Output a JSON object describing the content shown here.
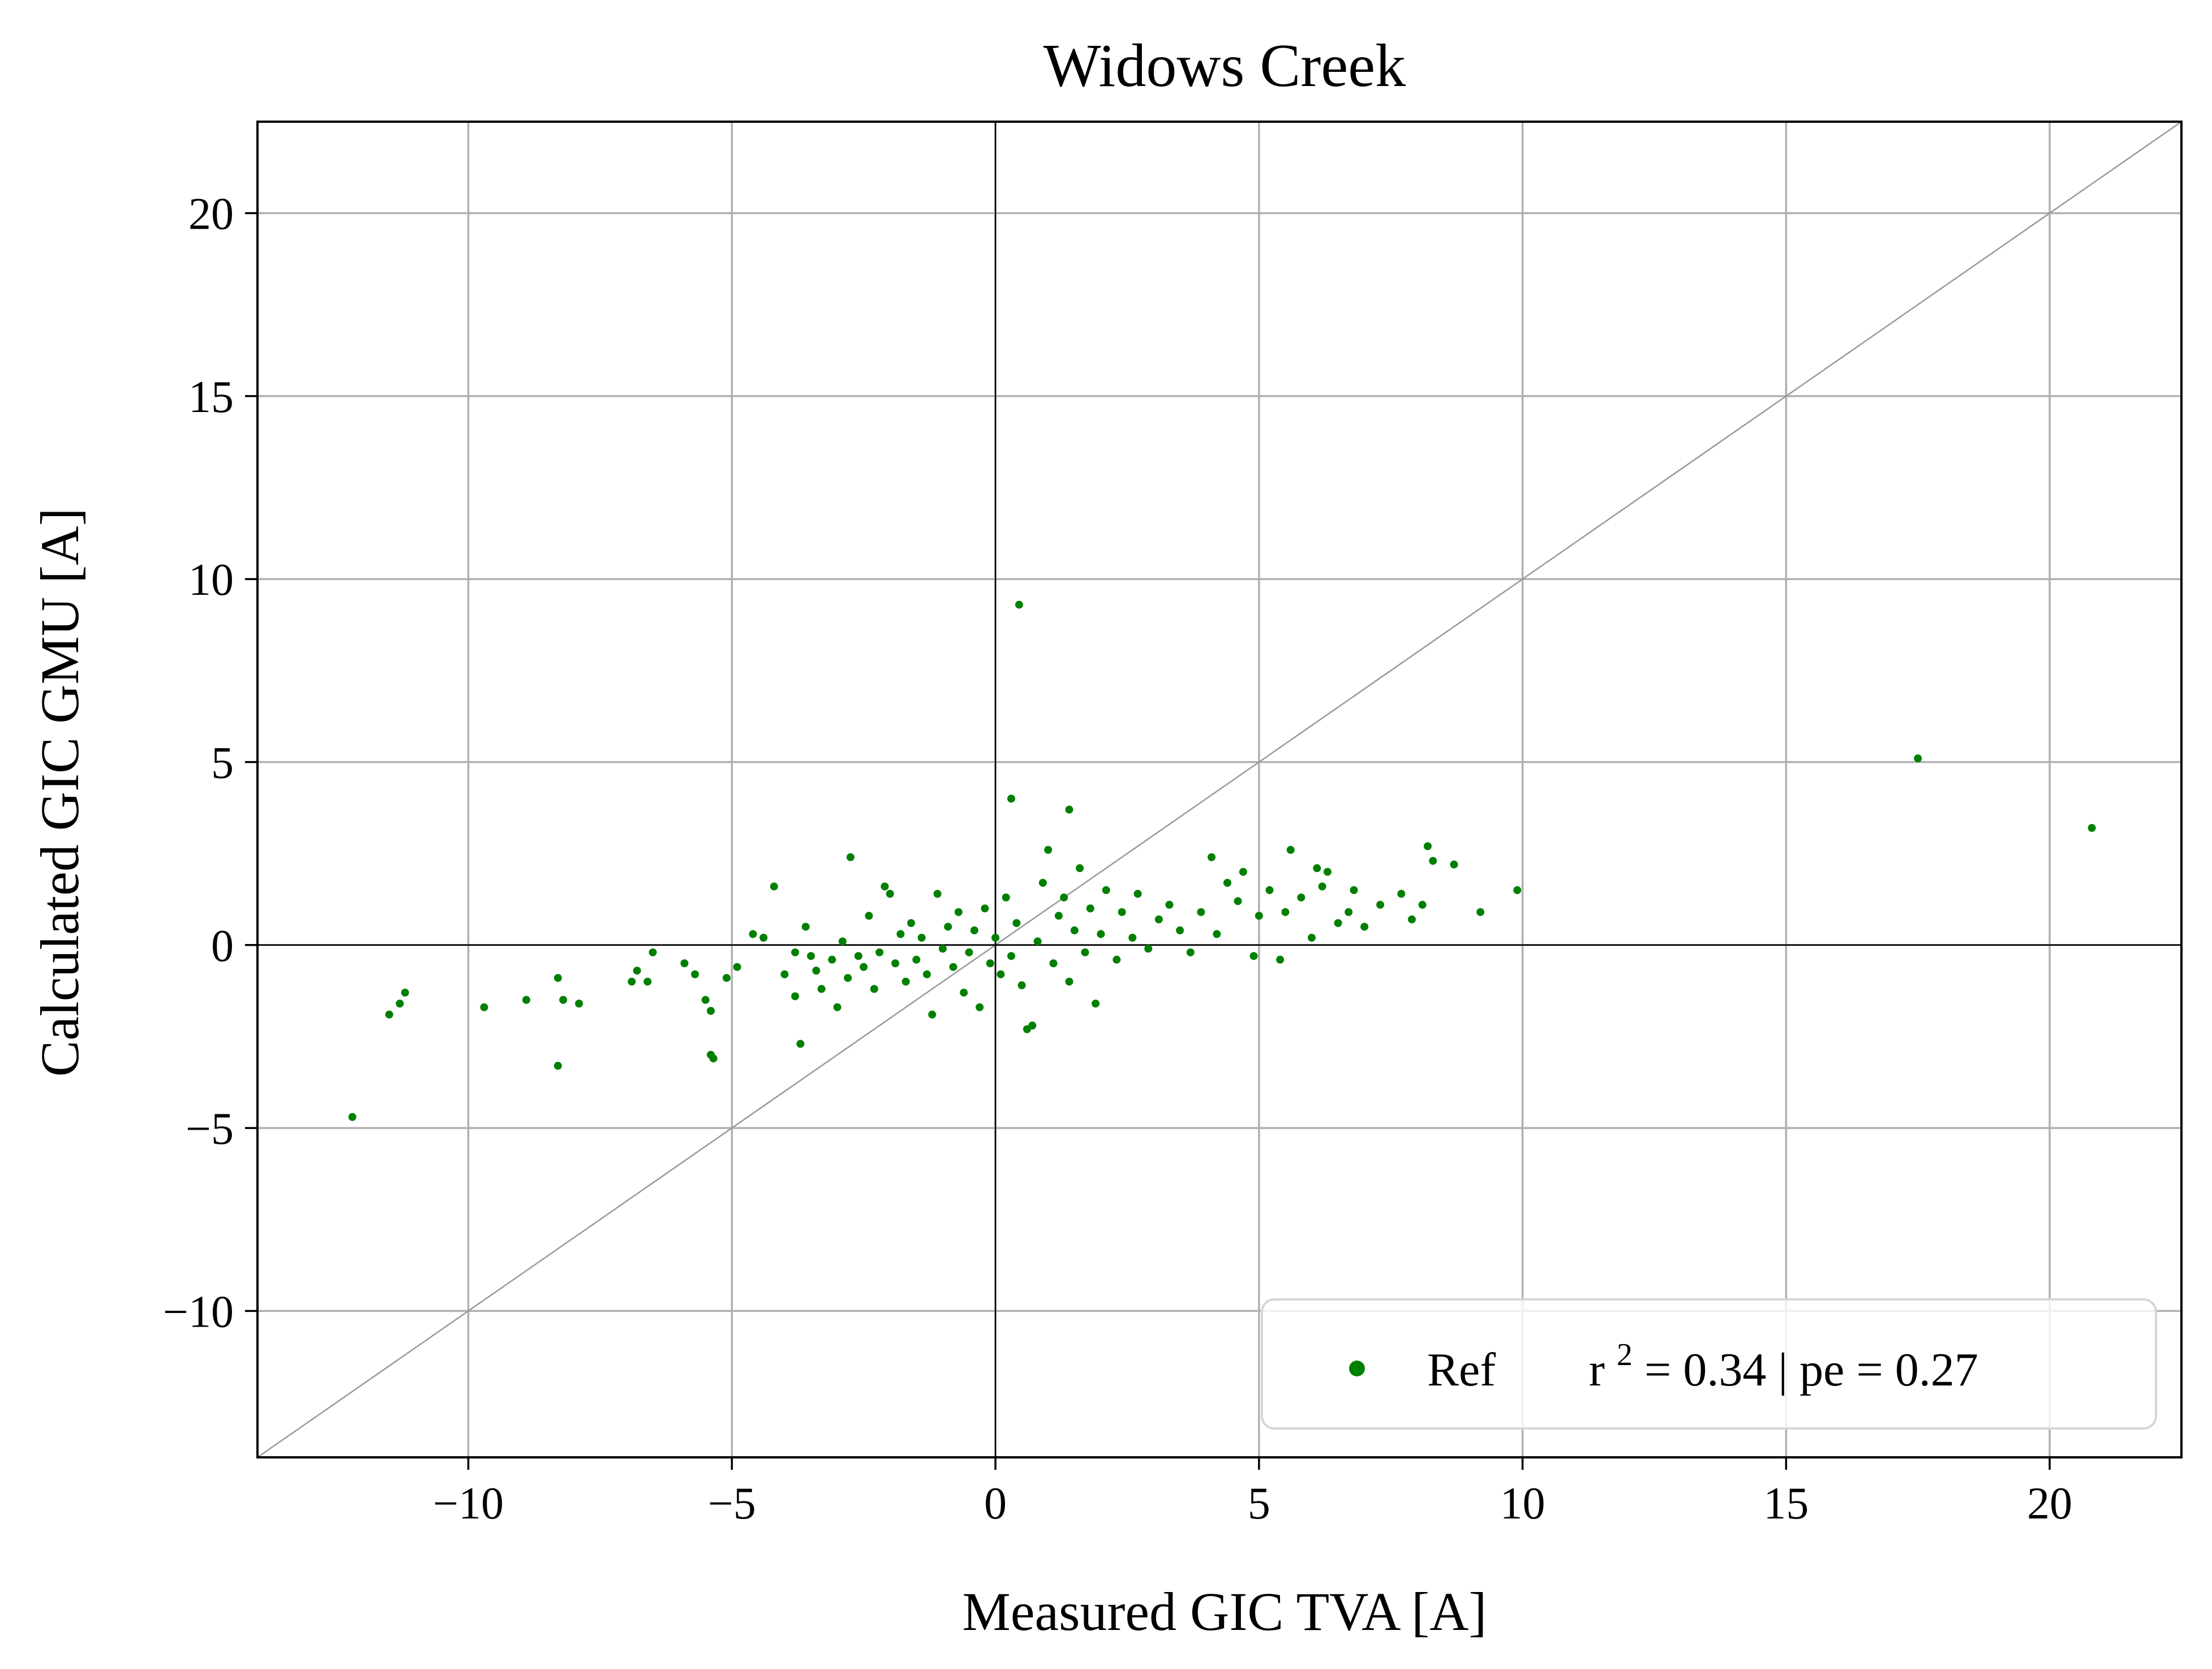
{
  "chart_data": {
    "type": "scatter",
    "title": "Widows Creek",
    "xlabel": "Measured GIC TVA [A]",
    "ylabel": "Calculated GIC GMU [A]",
    "xlim": [
      -14,
      22.5
    ],
    "ylim": [
      -14,
      22.5
    ],
    "xticks": [
      -10,
      -5,
      0,
      5,
      10,
      15,
      20
    ],
    "yticks": [
      -10,
      -5,
      0,
      5,
      10,
      15,
      20
    ],
    "xtick_labels": [
      "−10",
      "−5",
      "0",
      "5",
      "10",
      "15",
      "20"
    ],
    "ytick_labels": [
      "−10",
      "−5",
      "0",
      "5",
      "10",
      "15",
      "20"
    ],
    "grid": true,
    "reference_line": "y = x",
    "zero_lines": true,
    "legend_position": "lower-right",
    "series": [
      {
        "name": "Ref",
        "color": "#008000",
        "legend_label": "Ref",
        "legend_stats": {
          "r2_prefix": "r",
          "r2_exponent": "2",
          "r2_text": " = 0.34 | pe = 0.27"
        },
        "points": [
          [
            -12.2,
            -4.7
          ],
          [
            -11.5,
            -1.9
          ],
          [
            -11.2,
            -1.3
          ],
          [
            -11.3,
            -1.6
          ],
          [
            -9.7,
            -1.7
          ],
          [
            -8.9,
            -1.5
          ],
          [
            -8.3,
            -3.3
          ],
          [
            -8.3,
            -0.9
          ],
          [
            -8.2,
            -1.5
          ],
          [
            -7.9,
            -1.6
          ],
          [
            -6.9,
            -1.0
          ],
          [
            -6.8,
            -0.7
          ],
          [
            -6.6,
            -1.0
          ],
          [
            -6.5,
            -0.2
          ],
          [
            -5.9,
            -0.5
          ],
          [
            -5.7,
            -0.8
          ],
          [
            -5.5,
            -1.5
          ],
          [
            -5.4,
            -3.0
          ],
          [
            -5.35,
            -3.1
          ],
          [
            -5.4,
            -1.8
          ],
          [
            -5.1,
            -0.9
          ],
          [
            -4.9,
            -0.6
          ],
          [
            -4.6,
            0.3
          ],
          [
            -4.4,
            0.2
          ],
          [
            -4.2,
            1.6
          ],
          [
            -4.0,
            -0.8
          ],
          [
            -3.8,
            -0.2
          ],
          [
            -3.8,
            -1.4
          ],
          [
            -3.7,
            -2.7
          ],
          [
            -3.6,
            0.5
          ],
          [
            -3.5,
            -0.3
          ],
          [
            -3.4,
            -0.7
          ],
          [
            -3.3,
            -1.2
          ],
          [
            -3.1,
            -0.4
          ],
          [
            -3.0,
            -1.7
          ],
          [
            -2.9,
            0.1
          ],
          [
            -2.8,
            -0.9
          ],
          [
            -2.75,
            2.4
          ],
          [
            -2.6,
            -0.3
          ],
          [
            -2.5,
            -0.6
          ],
          [
            -2.4,
            0.8
          ],
          [
            -2.3,
            -1.2
          ],
          [
            -2.2,
            -0.2
          ],
          [
            -2.1,
            1.6
          ],
          [
            -2.0,
            1.4
          ],
          [
            -1.9,
            -0.5
          ],
          [
            -1.8,
            0.3
          ],
          [
            -1.7,
            -1.0
          ],
          [
            -1.6,
            0.6
          ],
          [
            -1.5,
            -0.4
          ],
          [
            -1.4,
            0.2
          ],
          [
            -1.3,
            -0.8
          ],
          [
            -1.2,
            -1.9
          ],
          [
            -1.1,
            1.4
          ],
          [
            -1.0,
            -0.1
          ],
          [
            -0.9,
            0.5
          ],
          [
            -0.8,
            -0.6
          ],
          [
            -0.7,
            0.9
          ],
          [
            -0.6,
            -1.3
          ],
          [
            -0.5,
            -0.2
          ],
          [
            -0.4,
            0.4
          ],
          [
            -0.3,
            -1.7
          ],
          [
            -0.2,
            1.0
          ],
          [
            -0.1,
            -0.5
          ],
          [
            0.0,
            0.2
          ],
          [
            0.1,
            -0.8
          ],
          [
            0.2,
            1.3
          ],
          [
            0.3,
            -0.3
          ],
          [
            0.3,
            4.0
          ],
          [
            0.4,
            0.6
          ],
          [
            0.45,
            9.3
          ],
          [
            0.5,
            -1.1
          ],
          [
            0.6,
            -2.3
          ],
          [
            0.7,
            -2.2
          ],
          [
            0.8,
            0.1
          ],
          [
            0.9,
            1.7
          ],
          [
            1.0,
            2.6
          ],
          [
            1.1,
            -0.5
          ],
          [
            1.2,
            0.8
          ],
          [
            1.3,
            1.3
          ],
          [
            1.4,
            -1.0
          ],
          [
            1.5,
            0.4
          ],
          [
            1.4,
            3.7
          ],
          [
            1.6,
            2.1
          ],
          [
            1.7,
            -0.2
          ],
          [
            1.8,
            1.0
          ],
          [
            1.9,
            -1.6
          ],
          [
            2.0,
            0.3
          ],
          [
            2.1,
            1.5
          ],
          [
            2.3,
            -0.4
          ],
          [
            2.4,
            0.9
          ],
          [
            2.6,
            0.2
          ],
          [
            2.7,
            1.4
          ],
          [
            2.9,
            -0.1
          ],
          [
            3.1,
            0.7
          ],
          [
            3.3,
            1.1
          ],
          [
            3.5,
            0.4
          ],
          [
            3.7,
            -0.2
          ],
          [
            3.9,
            0.9
          ],
          [
            4.1,
            2.4
          ],
          [
            4.2,
            0.3
          ],
          [
            4.4,
            1.7
          ],
          [
            4.6,
            1.2
          ],
          [
            4.7,
            2.0
          ],
          [
            4.9,
            -0.3
          ],
          [
            5.0,
            0.8
          ],
          [
            5.2,
            1.5
          ],
          [
            5.4,
            -0.4
          ],
          [
            5.5,
            0.9
          ],
          [
            5.6,
            2.6
          ],
          [
            5.8,
            1.3
          ],
          [
            6.0,
            0.2
          ],
          [
            6.1,
            2.1
          ],
          [
            6.2,
            1.6
          ],
          [
            6.3,
            2.0
          ],
          [
            6.5,
            0.6
          ],
          [
            6.7,
            0.9
          ],
          [
            6.8,
            1.5
          ],
          [
            7.0,
            0.5
          ],
          [
            7.3,
            1.1
          ],
          [
            7.7,
            1.4
          ],
          [
            7.9,
            0.7
          ],
          [
            8.1,
            1.1
          ],
          [
            8.2,
            2.7
          ],
          [
            8.3,
            2.3
          ],
          [
            8.7,
            2.2
          ],
          [
            9.2,
            0.9
          ],
          [
            9.9,
            1.5
          ],
          [
            17.5,
            5.1
          ],
          [
            20.8,
            3.2
          ]
        ]
      }
    ]
  }
}
